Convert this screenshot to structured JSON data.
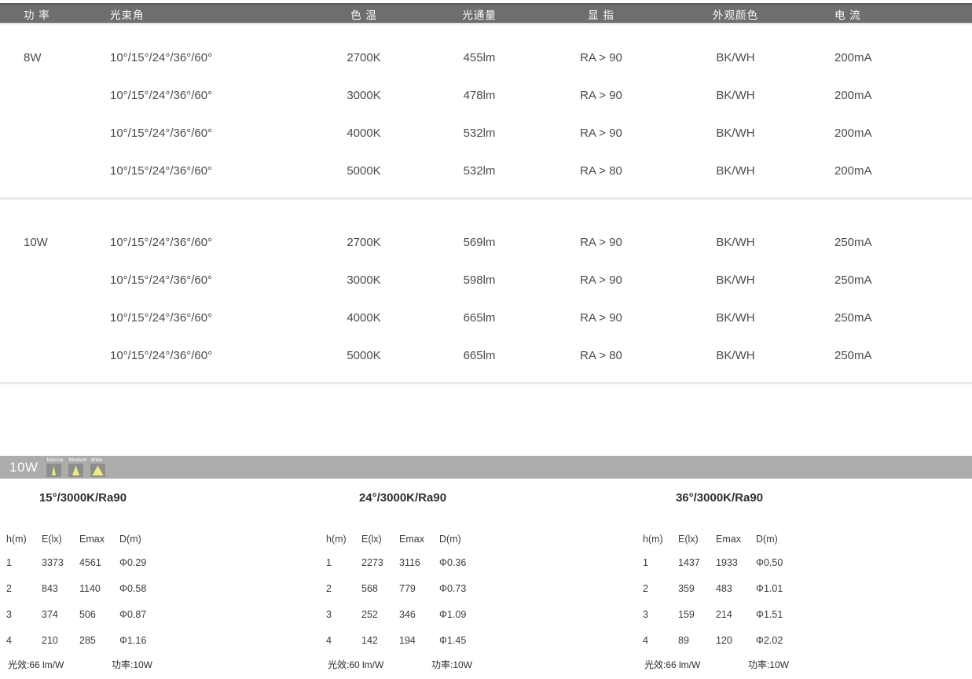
{
  "colors": {
    "header_bar": "#6f6e6c",
    "header_text": "#ffffff",
    "body_text": "#4b4b4d",
    "divider": "#e9e9e9",
    "strip_bg": "#acacaa",
    "icon_square": "#8e8e8c",
    "icon_beam_yellow": "#eceb86",
    "footer_rule": "#a8a8a8"
  },
  "spec_table": {
    "headers": [
      "功 率",
      "光束角",
      "色 温",
      "光通量",
      "显 指",
      "外观颜色",
      "电 流"
    ],
    "groups": [
      {
        "power": "8W",
        "rows": [
          {
            "beam": "10°/15°/24°/36°/60°",
            "cct": "2700K",
            "flux": "455lm",
            "cri": "RA > 90",
            "color": "BK/WH",
            "current": "200mA"
          },
          {
            "beam": "10°/15°/24°/36°/60°",
            "cct": "3000K",
            "flux": "478lm",
            "cri": "RA > 90",
            "color": "BK/WH",
            "current": "200mA"
          },
          {
            "beam": "10°/15°/24°/36°/60°",
            "cct": "4000K",
            "flux": "532lm",
            "cri": "RA > 90",
            "color": "BK/WH",
            "current": "200mA"
          },
          {
            "beam": "10°/15°/24°/36°/60°",
            "cct": "5000K",
            "flux": "532lm",
            "cri": "RA > 80",
            "color": "BK/WH",
            "current": "200mA"
          }
        ]
      },
      {
        "power": "10W",
        "rows": [
          {
            "beam": "10°/15°/24°/36°/60°",
            "cct": "2700K",
            "flux": "569lm",
            "cri": "RA > 90",
            "color": "BK/WH",
            "current": "250mA"
          },
          {
            "beam": "10°/15°/24°/36°/60°",
            "cct": "3000K",
            "flux": "598lm",
            "cri": "RA > 90",
            "color": "BK/WH",
            "current": "250mA"
          },
          {
            "beam": "10°/15°/24°/36°/60°",
            "cct": "4000K",
            "flux": "665lm",
            "cri": "RA > 90",
            "color": "BK/WH",
            "current": "250mA"
          },
          {
            "beam": "10°/15°/24°/36°/60°",
            "cct": "5000K",
            "flux": "665lm",
            "cri": "RA > 80",
            "color": "BK/WH",
            "current": "250mA"
          }
        ]
      }
    ]
  },
  "photometry": {
    "power_label": "10W",
    "beam_icons": [
      {
        "label": "Narrow"
      },
      {
        "label": "Medium"
      },
      {
        "label": "Wide"
      }
    ],
    "columns": [
      "h(m)",
      "E(lx)",
      "Emax",
      "D(m)"
    ],
    "tables": [
      {
        "title": "15°/3000K/Ra90",
        "rows": [
          [
            "1",
            "3373",
            "4561",
            "Φ0.29"
          ],
          [
            "2",
            "843",
            "1140",
            "Φ0.58"
          ],
          [
            "3",
            "374",
            "506",
            "Φ0.87"
          ],
          [
            "4",
            "210",
            "285",
            "Φ1.16"
          ]
        ],
        "efficacy": "光效:66 lm/W",
        "power": "功率:10W"
      },
      {
        "title": "24°/3000K/Ra90",
        "rows": [
          [
            "1",
            "2273",
            "3116",
            "Φ0.36"
          ],
          [
            "2",
            "568",
            "779",
            "Φ0.73"
          ],
          [
            "3",
            "252",
            "346",
            "Φ1.09"
          ],
          [
            "4",
            "142",
            "194",
            "Φ1.45"
          ]
        ],
        "efficacy": "光效:60 lm/W",
        "power": "功率:10W"
      },
      {
        "title": "36°/3000K/Ra90",
        "rows": [
          [
            "1",
            "1437",
            "1933",
            "Φ0.50"
          ],
          [
            "2",
            "359",
            "483",
            "Φ1.01"
          ],
          [
            "3",
            "159",
            "214",
            "Φ1.51"
          ],
          [
            "4",
            "89",
            "120",
            "Φ2.02"
          ]
        ],
        "efficacy": "光效:66 lm/W",
        "power": "功率:10W"
      }
    ]
  }
}
